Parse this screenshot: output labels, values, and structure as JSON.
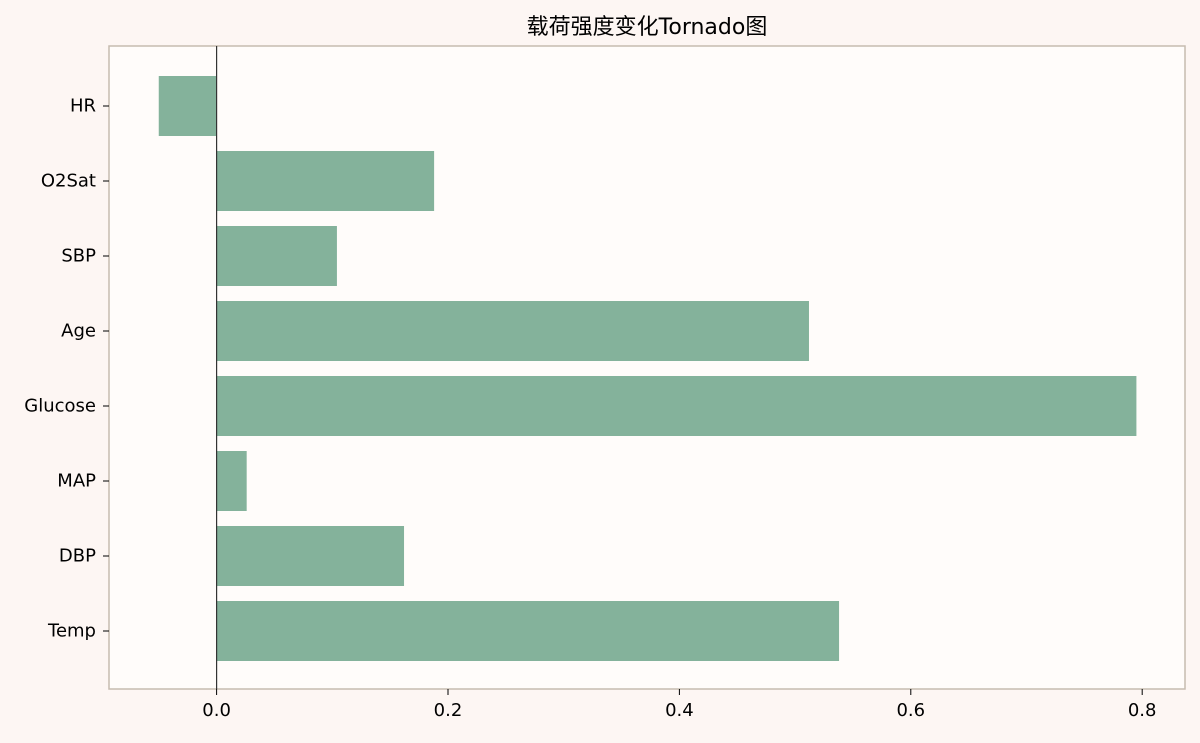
{
  "chart_data": {
    "type": "bar",
    "orientation": "horizontal",
    "title": "载荷强度变化Tornado图",
    "xlabel": "",
    "ylabel": "",
    "categories": [
      "HR",
      "O2Sat",
      "SBP",
      "Age",
      "Glucose",
      "MAP",
      "DBP",
      "Temp"
    ],
    "values": [
      -0.05,
      0.188,
      0.104,
      0.512,
      0.795,
      0.026,
      0.162,
      0.538
    ],
    "xlim": [
      -0.093,
      0.837
    ],
    "xticks": [
      0.0,
      0.2,
      0.4,
      0.6,
      0.8
    ],
    "xtick_labels": [
      "0.0",
      "0.2",
      "0.4",
      "0.6",
      "0.8"
    ],
    "grid": false,
    "colors": {
      "bar": "#84b29b",
      "plot_background": "#fffcfa",
      "figure_background": "#fdf6f3",
      "frame": "#c6bcb0",
      "zero_line": "#333333"
    }
  }
}
